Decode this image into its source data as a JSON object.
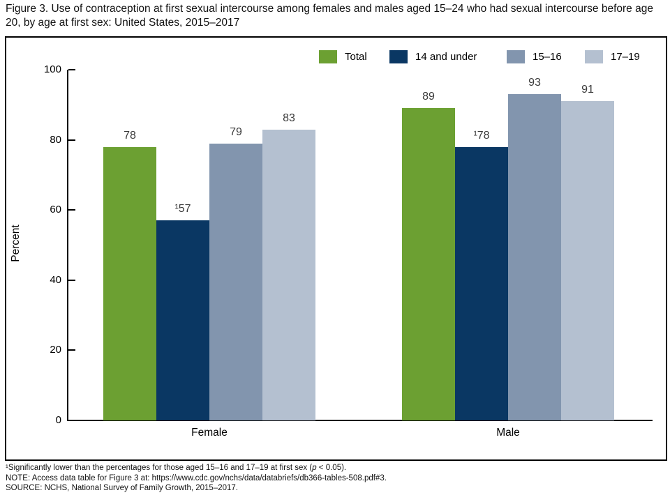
{
  "title": "Figure 3. Use of contraception at first sexual intercourse among females and males aged 15–24 who had sexual intercourse before age 20, by age at first sex: United States, 2015–2017",
  "chart_data": {
    "type": "bar",
    "title": "Figure 3. Use of contraception at first sexual intercourse among females and males aged 15–24 who had sexual intercourse before age 20, by age at first sex: United States, 2015–2017",
    "categories": [
      "Female",
      "Male"
    ],
    "series": [
      {
        "name": "Total",
        "color": "#6CA032",
        "values": [
          78,
          89
        ],
        "value_labels": [
          "78",
          "89"
        ]
      },
      {
        "name": "14 and under",
        "color": "#0A3763",
        "values": [
          57,
          78
        ],
        "value_labels": [
          "¹57",
          "¹78"
        ]
      },
      {
        "name": "15–16",
        "color": "#8295AE",
        "values": [
          79,
          93
        ],
        "value_labels": [
          "79",
          "93"
        ]
      },
      {
        "name": "17–19",
        "color": "#B4C0D0",
        "values": [
          83,
          91
        ],
        "value_labels": [
          "83",
          "91"
        ]
      }
    ],
    "xlabel": "",
    "ylabel": "Percent",
    "ylim": [
      0,
      100
    ],
    "yticks": [
      0,
      20,
      40,
      60,
      80,
      100
    ],
    "grid": false,
    "legend_position": "top-right",
    "axis_color": "#000000",
    "background_color": "#FFFFFF"
  },
  "footnotes": {
    "significance": {
      "pre": "¹Significantly lower than the percentages for those aged 15–16 and 17–19 at first sex (",
      "italic": "p",
      "post": " < 0.05)."
    },
    "note": "NOTE: Access data table for Figure 3 at: https://www.cdc.gov/nchs/data/databriefs/db366-tables-508.pdf#3.",
    "source": "SOURCE: NCHS, National Survey of Family Growth, 2015–2017."
  }
}
